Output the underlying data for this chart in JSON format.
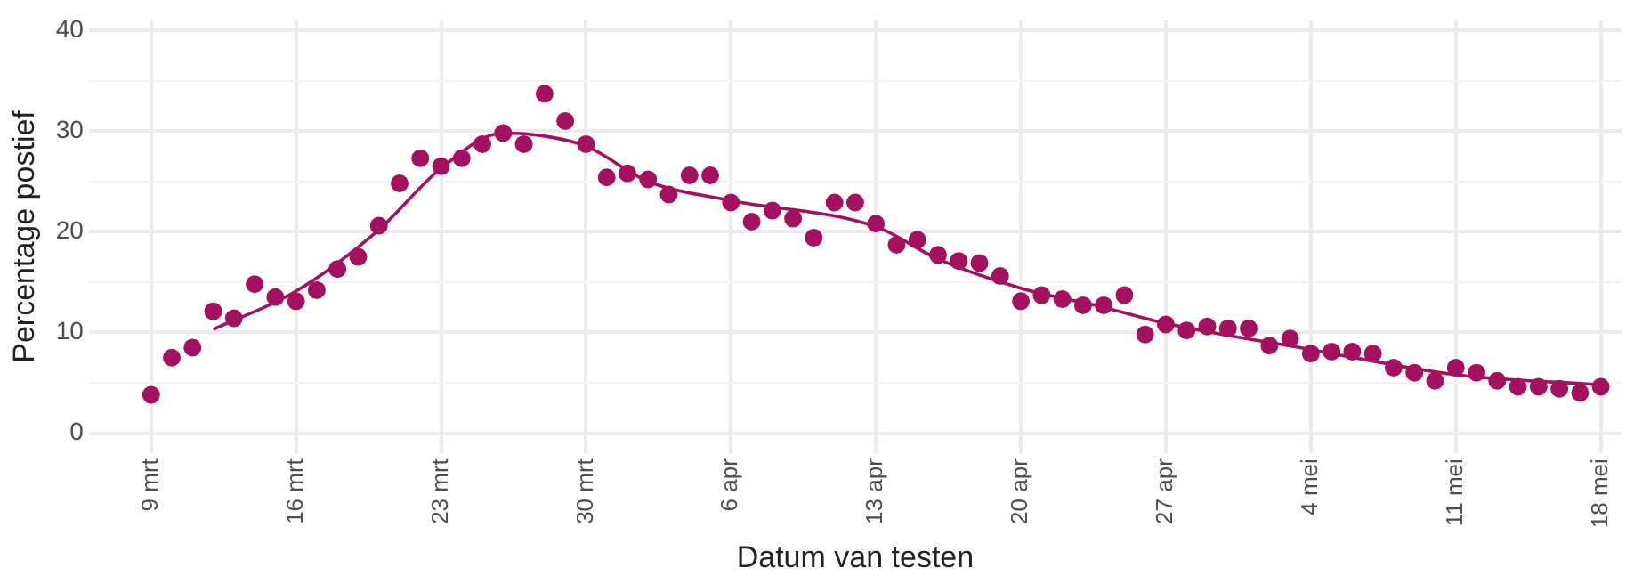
{
  "chart_data": {
    "type": "scatter",
    "xlabel": "Datum van testen",
    "ylabel": "Percentage postief",
    "xlim": [
      "--03-06",
      "--05-19"
    ],
    "xticks": [
      {
        "value": "--03-09",
        "label": "9 mrt"
      },
      {
        "value": "--03-16",
        "label": "16 mrt"
      },
      {
        "value": "--03-23",
        "label": "23 mrt"
      },
      {
        "value": "--03-30",
        "label": "30 mrt"
      },
      {
        "value": "--04-06",
        "label": "6 apr"
      },
      {
        "value": "--04-13",
        "label": "13 apr"
      },
      {
        "value": "--04-20",
        "label": "20 apr"
      },
      {
        "value": "--04-27",
        "label": "27 apr"
      },
      {
        "value": "--05-04",
        "label": "4 mei"
      },
      {
        "value": "--05-11",
        "label": "11 mei"
      },
      {
        "value": "--05-18",
        "label": "18 mei"
      }
    ],
    "ylim": [
      -2,
      41
    ],
    "yticks": [
      0,
      {
        "value": 5,
        "label": null
      },
      10,
      {
        "value": 15,
        "label": null
      },
      20,
      {
        "value": 25,
        "label": null
      },
      30,
      {
        "value": 35,
        "label": null
      },
      40
    ],
    "grid": true,
    "marker": "circle",
    "x": [
      "--03-09",
      "--03-10",
      "--03-11",
      "--03-12",
      "--03-13",
      "--03-14",
      "--03-15",
      "--03-16",
      "--03-17",
      "--03-18",
      "--03-19",
      "--03-20",
      "--03-21",
      "--03-22",
      "--03-23",
      "--03-24",
      "--03-25",
      "--03-26",
      "--03-27",
      "--03-28",
      "--03-29",
      "--03-30",
      "--03-31",
      "--04-01",
      "--04-02",
      "--04-03",
      "--04-04",
      "--04-05",
      "--04-06",
      "--04-07",
      "--04-08",
      "--04-09",
      "--04-10",
      "--04-11",
      "--04-12",
      "--04-13",
      "--04-14",
      "--04-15",
      "--04-16",
      "--04-17",
      "--04-18",
      "--04-19",
      "--04-20",
      "--04-21",
      "--04-22",
      "--04-23",
      "--04-24",
      "--04-25",
      "--04-26",
      "--04-27",
      "--04-28",
      "--04-29",
      "--04-30",
      "--05-01",
      "--05-02",
      "--05-03",
      "--05-04",
      "--05-05",
      "--05-06",
      "--05-07",
      "--05-08",
      "--05-09",
      "--05-10",
      "--05-11",
      "--05-12",
      "--05-13",
      "--05-14",
      "--05-15",
      "--05-16",
      "--05-17",
      "--05-18"
    ],
    "series": [
      {
        "color": "#a3115f",
        "values": [
          3.8,
          7.5,
          8.5,
          12.1,
          11.4,
          14.8,
          13.5,
          13.1,
          14.2,
          16.3,
          17.5,
          20.6,
          24.8,
          27.3,
          26.5,
          27.3,
          28.7,
          29.8,
          28.7,
          33.7,
          31.0,
          28.7,
          25.4,
          25.8,
          25.2,
          23.7,
          25.6,
          25.6,
          22.9,
          21.0,
          22.1,
          21.3,
          19.4,
          22.9,
          22.9,
          20.8,
          18.7,
          19.2,
          17.7,
          17.1,
          16.9,
          15.6,
          13.1,
          13.7,
          13.3,
          12.7,
          12.7,
          13.7,
          9.8,
          10.8,
          10.2,
          10.6,
          10.4,
          10.4,
          8.7,
          9.4,
          7.9,
          8.1,
          8.1,
          7.9,
          6.5,
          6.0,
          5.2,
          6.5,
          6.0,
          5.2,
          4.6,
          4.6,
          4.4,
          4.0,
          4.6
        ]
      },
      {
        "type": "line",
        "color": "#a3115f",
        "marker": "none",
        "line_style": "solid",
        "x": [
          "--03-12",
          "--03-16",
          "--03-20",
          "--03-23",
          "--03-26",
          "--03-28",
          "--03-30",
          "--04-02",
          "--04-06",
          "--04-13",
          "--04-16",
          "--04-20",
          "--04-24",
          "--04-27",
          "--05-04",
          "--05-11",
          "--05-18"
        ],
        "values": [
          10.3,
          14.1,
          20.2,
          26.3,
          29.8,
          29.5,
          28.5,
          25.0,
          23.1,
          20.5,
          17.3,
          14.4,
          12.5,
          10.9,
          8.3,
          5.8,
          4.8
        ]
      }
    ]
  }
}
